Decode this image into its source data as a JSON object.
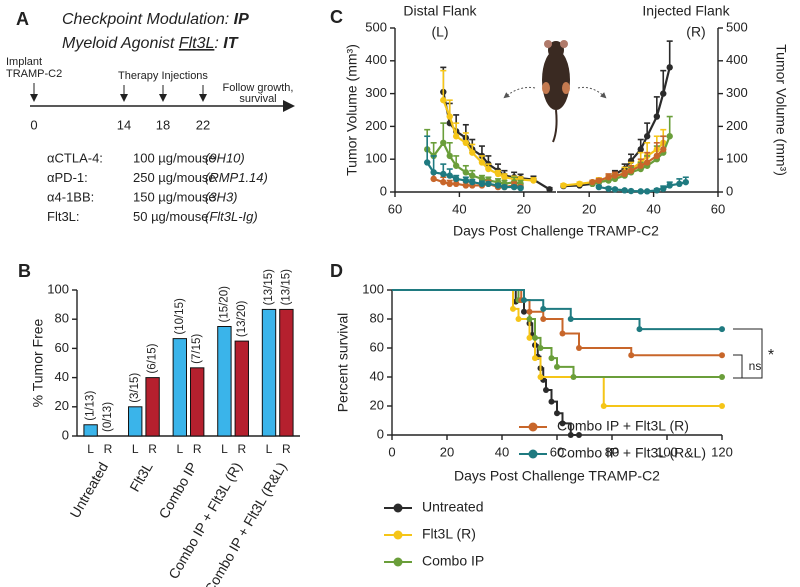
{
  "panel_a": {
    "label": "A",
    "line1": [
      "Checkpoint Modulation: ",
      "IP"
    ],
    "line2": [
      "Myeloid Agonist ",
      "Flt3L",
      ": ",
      "IT"
    ],
    "implant": [
      "Implant",
      "TRAMP-C2"
    ],
    "therapy": "Therapy Injections",
    "follow": [
      "Follow growth,",
      "survival"
    ],
    "days": [
      "0",
      "14",
      "18",
      "22"
    ],
    "doses": [
      [
        "αCTLA-4:",
        "100 µg/mouse",
        "(9H10)"
      ],
      [
        "αPD-1:",
        "250 µg/mouse",
        "(RMP1.14)"
      ],
      [
        "α4-1BB:",
        "150 µg/mouse",
        "(3H3)"
      ],
      [
        "Flt3L:",
        "50 µg/mouse",
        "(Flt3L-Ig)"
      ]
    ]
  },
  "chart_data": [
    {
      "panel": "B",
      "type": "bar",
      "ylabel": "% Tumor Free",
      "categories": [
        "Untreated",
        "Flt3L",
        "Combo IP",
        "Combo IP + Flt3L (R)",
        "Combo IP + Flt3L (R&L)"
      ],
      "series": [
        {
          "name": "L",
          "color": "#3ab4ea",
          "values": [
            7.7,
            20,
            66.7,
            75,
            86.7
          ],
          "fractions": [
            "(1/13)",
            "(3/15)",
            "(10/15)",
            "(15/20)",
            "(13/15)"
          ]
        },
        {
          "name": "R",
          "color": "#b5202e",
          "values": [
            0,
            40,
            46.7,
            65,
            86.7
          ],
          "fractions": [
            "(0/13)",
            "(6/15)",
            "(7/15)",
            "(13/20)",
            "(13/15)"
          ]
        }
      ],
      "ylim": [
        0,
        100
      ],
      "yticks": [
        0,
        20,
        40,
        60,
        80,
        100
      ]
    },
    {
      "panel": "C",
      "type": "line",
      "title": "Distal Flank",
      "subtitle": "(L)",
      "ylabel": "Tumor Volume (mm³)",
      "xlabel": "Days Post Challenge TRAMP-C2",
      "xlim": [
        60,
        10
      ],
      "xticks": [
        60,
        40,
        20
      ],
      "ylim": [
        0,
        500
      ],
      "yticks": [
        0,
        100,
        200,
        300,
        400,
        500
      ],
      "series": [
        {
          "color": "#2b2b2b",
          "x": [
            45,
            43,
            41,
            38,
            36,
            33,
            31,
            28,
            26,
            23,
            21,
            17,
            12
          ],
          "values": [
            305,
            210,
            185,
            165,
            130,
            110,
            85,
            65,
            50,
            45,
            42,
            38,
            8
          ],
          "errors": [
            75,
            60,
            50,
            40,
            30,
            30,
            25,
            20,
            15,
            15,
            12,
            10,
            5
          ]
        },
        {
          "color": "#f5c518",
          "x": [
            45,
            43,
            41,
            38,
            36,
            33,
            31,
            28,
            26,
            23,
            21,
            17
          ],
          "values": [
            280,
            230,
            170,
            150,
            120,
            90,
            70,
            55,
            45,
            40,
            38,
            35
          ],
          "errors": [
            90,
            50,
            40,
            30,
            25,
            20,
            15,
            10,
            10,
            8,
            8,
            8
          ]
        },
        {
          "color": "#6a9e3a",
          "x": [
            50,
            48,
            45,
            43,
            41,
            38,
            36,
            33,
            31,
            28,
            26,
            23,
            21
          ],
          "values": [
            130,
            110,
            150,
            110,
            80,
            60,
            50,
            40,
            35,
            30,
            25,
            30,
            25
          ],
          "errors": [
            60,
            40,
            60,
            40,
            30,
            20,
            15,
            10,
            10,
            10,
            10,
            15,
            10
          ]
        },
        {
          "color": "#c8662a",
          "x": [
            48,
            45,
            43,
            41,
            38,
            36,
            33,
            31,
            28,
            26,
            23,
            21
          ],
          "values": [
            40,
            30,
            25,
            25,
            20,
            20,
            20,
            25,
            15,
            15,
            20,
            15
          ],
          "errors": [
            20,
            15,
            10,
            10,
            10,
            8,
            8,
            10,
            5,
            5,
            10,
            5
          ]
        },
        {
          "color": "#1f7a80",
          "x": [
            50,
            48,
            45,
            43,
            41,
            38,
            36,
            33,
            31,
            28,
            26,
            23,
            21
          ],
          "values": [
            90,
            60,
            55,
            50,
            40,
            35,
            30,
            25,
            25,
            20,
            15,
            15,
            12
          ],
          "errors": [
            80,
            50,
            30,
            20,
            10,
            10,
            8,
            8,
            5,
            5,
            5,
            5,
            5
          ]
        }
      ]
    },
    {
      "type": "line",
      "title": "Injected Flank",
      "subtitle": "(R)",
      "y2label": "Tumor Volume (mm³)",
      "xlim": [
        10,
        60
      ],
      "xticks": [
        20,
        40,
        60
      ],
      "y2lim": [
        0,
        500
      ],
      "y2ticks": [
        0,
        100,
        200,
        300,
        400,
        500
      ],
      "series": [
        {
          "axis": "y2",
          "color": "#2b2b2b",
          "x": [
            12,
            17,
            21,
            23,
            26,
            28,
            31,
            33,
            36,
            38,
            41,
            43,
            45
          ],
          "values": [
            18,
            20,
            25,
            30,
            40,
            55,
            70,
            95,
            130,
            170,
            230,
            300,
            380
          ],
          "errors": [
            5,
            5,
            5,
            8,
            10,
            10,
            15,
            20,
            30,
            40,
            60,
            70,
            80
          ]
        },
        {
          "axis": "y2",
          "color": "#f5c518",
          "x": [
            12,
            17,
            21,
            23,
            26,
            28,
            31,
            33,
            36,
            38,
            41,
            43
          ],
          "values": [
            20,
            25,
            30,
            35,
            40,
            45,
            60,
            70,
            90,
            110,
            130,
            150
          ],
          "errors": [
            5,
            5,
            5,
            8,
            10,
            10,
            15,
            20,
            30,
            40,
            40,
            40
          ]
        },
        {
          "axis": "y2",
          "color": "#6a9e3a",
          "x": [
            21,
            23,
            26,
            28,
            31,
            33,
            36,
            38,
            41,
            43,
            45
          ],
          "values": [
            25,
            30,
            35,
            40,
            50,
            60,
            70,
            80,
            100,
            120,
            170
          ],
          "errors": [
            5,
            5,
            8,
            10,
            10,
            15,
            20,
            30,
            40,
            50,
            60
          ]
        },
        {
          "axis": "y2",
          "color": "#c8662a",
          "x": [
            21,
            23,
            26,
            28,
            31,
            33,
            36,
            38,
            41,
            43
          ],
          "values": [
            30,
            35,
            45,
            50,
            55,
            65,
            80,
            90,
            110,
            130
          ],
          "errors": [
            5,
            5,
            10,
            10,
            10,
            15,
            20,
            30,
            40,
            40
          ]
        },
        {
          "axis": "y2",
          "color": "#1f7a80",
          "x": [
            23,
            26,
            28,
            31,
            33,
            36,
            38,
            41,
            43,
            45,
            48,
            50
          ],
          "values": [
            15,
            10,
            8,
            5,
            3,
            2,
            2,
            5,
            10,
            20,
            25,
            30
          ],
          "errors": [
            5,
            5,
            3,
            2,
            2,
            1,
            1,
            5,
            8,
            10,
            15,
            15
          ]
        }
      ]
    },
    {
      "panel": "D",
      "type": "step",
      "ylabel": "Percent survival",
      "xlabel": "Days Post Challenge TRAMP-C2",
      "xlim": [
        0,
        120
      ],
      "xticks": [
        0,
        20,
        40,
        60,
        80,
        100,
        120
      ],
      "ylim": [
        0,
        100
      ],
      "yticks": [
        0,
        20,
        40,
        60,
        80,
        100
      ],
      "series": [
        {
          "name": "Untreated",
          "color": "#2b2b2b",
          "x": [
            0,
            45,
            48,
            50,
            51,
            52,
            53,
            54,
            55,
            56,
            58,
            60,
            62,
            65,
            68
          ],
          "values": [
            100,
            92,
            85,
            77,
            69,
            62,
            54,
            46,
            38,
            31,
            23,
            15,
            8,
            0,
            0
          ]
        },
        {
          "name": "Flt3L (R)",
          "color": "#f5c518",
          "x": [
            0,
            44,
            46,
            50,
            52,
            54,
            77,
            120
          ],
          "values": [
            100,
            87,
            80,
            67,
            53,
            40,
            20,
            20
          ]
        },
        {
          "name": "Combo IP",
          "color": "#6a9e3a",
          "x": [
            0,
            46,
            50,
            52,
            54,
            58,
            60,
            66,
            120
          ],
          "values": [
            100,
            93,
            80,
            67,
            60,
            53,
            47,
            40,
            40
          ]
        },
        {
          "name": "Combo IP + Flt3L (R)",
          "color": "#c8662a",
          "x": [
            0,
            47,
            50,
            55,
            62,
            68,
            87,
            120
          ],
          "values": [
            100,
            93,
            85,
            80,
            70,
            60,
            55,
            55
          ]
        },
        {
          "name": "Combo IP + Flt3L (R&L)",
          "color": "#1f7a80",
          "x": [
            0,
            48,
            55,
            65,
            90,
            120
          ],
          "values": [
            100,
            93,
            87,
            80,
            73,
            73
          ]
        }
      ],
      "annotations": [
        "*",
        "ns"
      ]
    }
  ]
}
